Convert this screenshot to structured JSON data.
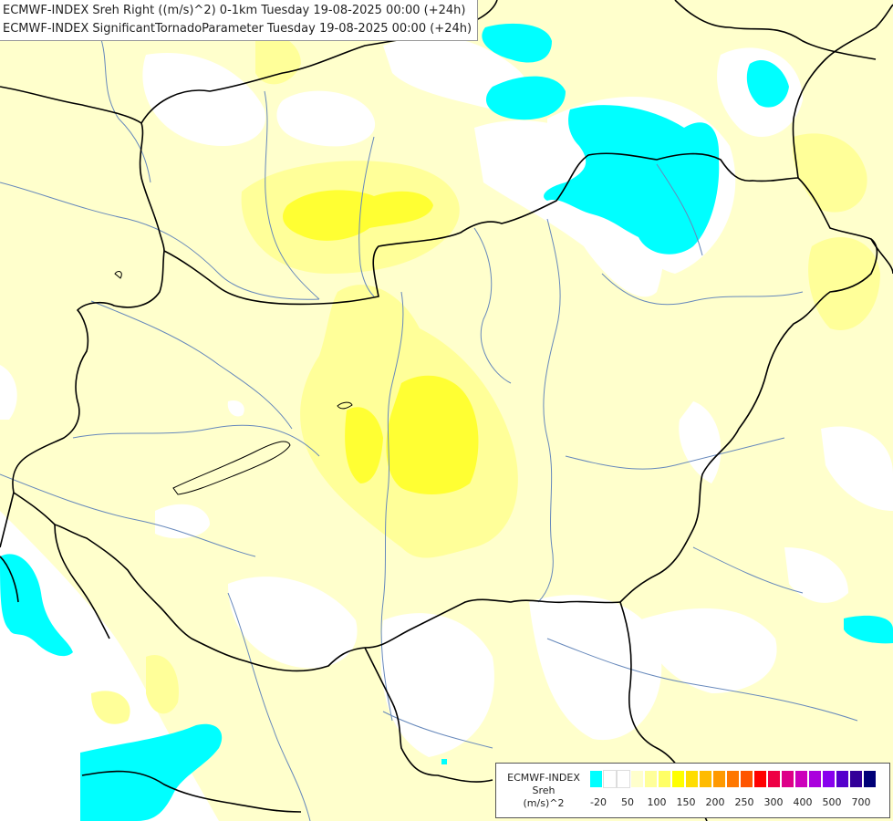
{
  "header": {
    "line1": "ECMWF-INDEX Sreh Right ((m/s)^2) 0-1km Tuesday 19-08-2025 00:00 (+24h)",
    "line2": "ECMWF-INDEX SignificantTornadoParameter Tuesday 19-08-2025 00:00 (+24h)"
  },
  "legend": {
    "title": "ECMWF-INDEX",
    "param": "Sreh",
    "unit": "(m/s)^2",
    "colors": [
      "#00ffff",
      "#ffffff",
      "#ffffff",
      "#ffffcc",
      "#ffff99",
      "#ffff66",
      "#ffff00",
      "#ffdd00",
      "#ffbb00",
      "#ff9900",
      "#ff7700",
      "#ff5500",
      "#ff0000",
      "#ee0044",
      "#dd0088",
      "#cc00bb",
      "#aa00dd",
      "#8800ee",
      "#5500cc",
      "#330099",
      "#000077"
    ],
    "tick_labels": [
      "-20",
      "50",
      "100",
      "150",
      "200",
      "250",
      "300",
      "400",
      "500",
      "700"
    ]
  },
  "map_colors": {
    "light": "#ffffcc",
    "medium": "#ffff99",
    "bright": "#ffff33",
    "cyan": "#00ffff",
    "border": "#000000",
    "river": "#6688bb"
  }
}
